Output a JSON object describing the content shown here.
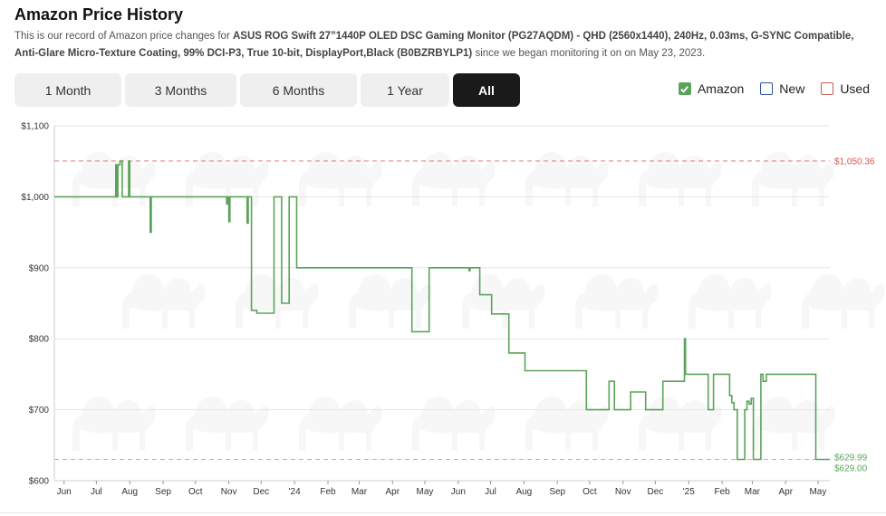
{
  "header": {
    "title": "Amazon Price History",
    "desc_prefix": "This is our record of Amazon price changes for ",
    "product_name": "ASUS ROG Swift 27”1440P OLED DSC Gaming Monitor (PG27AQDM) - QHD (2560x1440), 240Hz, 0.03ms, G-SYNC Compatible, Anti-Glare Micro-Texture Coating, 99% DCI-P3, True 10-bit, DisplayPort,Black (B0BZRBYLP1)",
    "desc_suffix": " since we began monitoring it on on May 23, 2023."
  },
  "range_buttons": [
    {
      "label": "1 Month",
      "active": false
    },
    {
      "label": "3 Months",
      "active": false
    },
    {
      "label": "6 Months",
      "active": false
    },
    {
      "label": "1 Year",
      "active": false
    },
    {
      "label": "All",
      "active": true
    }
  ],
  "legend": [
    {
      "label": "Amazon",
      "checked": true,
      "color": "#5ba35b"
    },
    {
      "label": "New",
      "checked": false,
      "color": "#2b4f9b"
    },
    {
      "label": "Used",
      "checked": false,
      "color": "#c0604c"
    }
  ],
  "colors": {
    "amazon_line": "#5ba35b",
    "high_line": "#e07a7a",
    "high_text": "#d9534f",
    "low_line": "#8fd08f",
    "low_text": "#5ba35b",
    "grid": "#e6e6e6"
  },
  "chart_data": {
    "type": "line",
    "x_type": "date",
    "ylim": [
      600,
      1100
    ],
    "xlim": [
      "2023-05-23",
      "2025-05-12"
    ],
    "y_ticks": [
      {
        "value": 600,
        "label": "$600"
      },
      {
        "value": 700,
        "label": "$700"
      },
      {
        "value": 800,
        "label": "$800"
      },
      {
        "value": 900,
        "label": "$900"
      },
      {
        "value": 1000,
        "label": "$1,000"
      },
      {
        "value": 1100,
        "label": "$1,100"
      }
    ],
    "x_ticks": [
      {
        "date": "2023-06-01",
        "label": "Jun"
      },
      {
        "date": "2023-07-01",
        "label": "Jul"
      },
      {
        "date": "2023-08-01",
        "label": "Aug"
      },
      {
        "date": "2023-09-01",
        "label": "Sep"
      },
      {
        "date": "2023-10-01",
        "label": "Oct"
      },
      {
        "date": "2023-11-01",
        "label": "Nov"
      },
      {
        "date": "2023-12-01",
        "label": "Dec"
      },
      {
        "date": "2024-01-01",
        "label": "'24"
      },
      {
        "date": "2024-02-01",
        "label": "Feb"
      },
      {
        "date": "2024-03-01",
        "label": "Mar"
      },
      {
        "date": "2024-04-01",
        "label": "Apr"
      },
      {
        "date": "2024-05-01",
        "label": "May"
      },
      {
        "date": "2024-06-01",
        "label": "Jun"
      },
      {
        "date": "2024-07-01",
        "label": "Jul"
      },
      {
        "date": "2024-08-01",
        "label": "Aug"
      },
      {
        "date": "2024-09-01",
        "label": "Sep"
      },
      {
        "date": "2024-10-01",
        "label": "Oct"
      },
      {
        "date": "2024-11-01",
        "label": "Nov"
      },
      {
        "date": "2024-12-01",
        "label": "Dec"
      },
      {
        "date": "2025-01-01",
        "label": "'25"
      },
      {
        "date": "2025-02-01",
        "label": "Feb"
      },
      {
        "date": "2025-03-01",
        "label": "Mar"
      },
      {
        "date": "2025-04-01",
        "label": "Apr"
      },
      {
        "date": "2025-05-01",
        "label": "May"
      }
    ],
    "reference_lines": [
      {
        "name": "highest",
        "value": 1050.36,
        "label": "$1,050.36"
      },
      {
        "name": "current",
        "value": 629.99,
        "label": "$629.99"
      },
      {
        "name": "lowest",
        "value": 629.0,
        "label": "$629.00"
      }
    ],
    "series": [
      {
        "name": "Amazon",
        "step": true,
        "points": [
          [
            "2023-05-23",
            999.99
          ],
          [
            "2023-07-19",
            1045
          ],
          [
            "2023-07-20",
            999.99
          ],
          [
            "2023-07-21",
            1045
          ],
          [
            "2023-07-23",
            1050.36
          ],
          [
            "2023-07-25",
            999.99
          ],
          [
            "2023-07-31",
            1050.36
          ],
          [
            "2023-08-01",
            999.99
          ],
          [
            "2023-08-20",
            950
          ],
          [
            "2023-08-21",
            999.99
          ],
          [
            "2023-10-30",
            990
          ],
          [
            "2023-10-31",
            999.99
          ],
          [
            "2023-11-01",
            965
          ],
          [
            "2023-11-02",
            999.99
          ],
          [
            "2023-11-18",
            963
          ],
          [
            "2023-11-19",
            999.99
          ],
          [
            "2023-11-22",
            840
          ],
          [
            "2023-11-27",
            836
          ],
          [
            "2023-12-13",
            999.99
          ],
          [
            "2023-12-20",
            850
          ],
          [
            "2023-12-27",
            999.99
          ],
          [
            "2024-01-03",
            899.99
          ],
          [
            "2024-04-19",
            810
          ],
          [
            "2024-05-05",
            899.99
          ],
          [
            "2024-06-11",
            896
          ],
          [
            "2024-06-12",
            899.99
          ],
          [
            "2024-06-21",
            862
          ],
          [
            "2024-07-02",
            835
          ],
          [
            "2024-07-18",
            780
          ],
          [
            "2024-08-02",
            755
          ],
          [
            "2024-09-28",
            700
          ],
          [
            "2024-10-19",
            740
          ],
          [
            "2024-10-24",
            700
          ],
          [
            "2024-11-08",
            725
          ],
          [
            "2024-11-22",
            700
          ],
          [
            "2024-12-08",
            740
          ],
          [
            "2024-12-28",
            800
          ],
          [
            "2024-12-29",
            750
          ],
          [
            "2025-01-19",
            700
          ],
          [
            "2025-01-24",
            750
          ],
          [
            "2025-02-08",
            720
          ],
          [
            "2025-02-10",
            710
          ],
          [
            "2025-02-12",
            700
          ],
          [
            "2025-02-15",
            630
          ],
          [
            "2025-02-22",
            700
          ],
          [
            "2025-02-24",
            712
          ],
          [
            "2025-02-26",
            708
          ],
          [
            "2025-02-28",
            716
          ],
          [
            "2025-03-02",
            630
          ],
          [
            "2025-03-09",
            750
          ],
          [
            "2025-03-11",
            740
          ],
          [
            "2025-03-14",
            750
          ],
          [
            "2025-04-29",
            629.99
          ],
          [
            "2025-05-12",
            629.99
          ]
        ]
      }
    ]
  }
}
